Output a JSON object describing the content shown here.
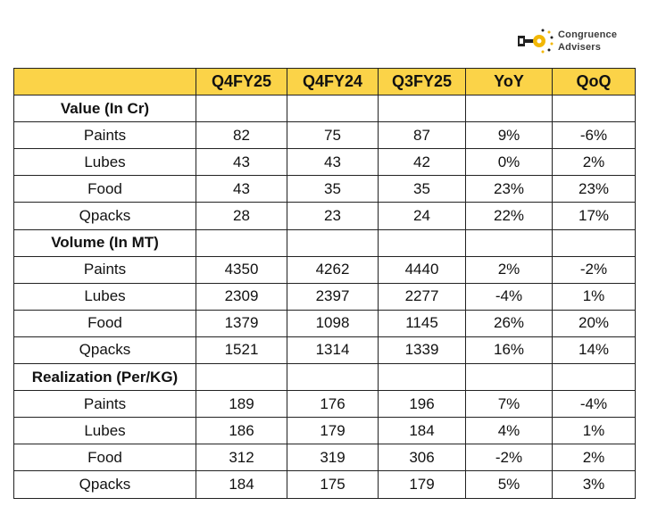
{
  "logo": {
    "line1": "Congruence",
    "line2": "Advisers",
    "icon": "key-icon",
    "accent": "#f2b705"
  },
  "header_color": "#fbd348",
  "columns": [
    "",
    "Q4FY25",
    "Q4FY24",
    "Q3FY25",
    "YoY",
    "QoQ"
  ],
  "sections": [
    {
      "title": "Value (In Cr)",
      "rows": [
        [
          "Paints",
          "82",
          "75",
          "87",
          "9%",
          "-6%"
        ],
        [
          "Lubes",
          "43",
          "43",
          "42",
          "0%",
          "2%"
        ],
        [
          "Food",
          "43",
          "35",
          "35",
          "23%",
          "23%"
        ],
        [
          "Qpacks",
          "28",
          "23",
          "24",
          "22%",
          "17%"
        ]
      ]
    },
    {
      "title": "Volume (In MT)",
      "rows": [
        [
          "Paints",
          "4350",
          "4262",
          "4440",
          "2%",
          "-2%"
        ],
        [
          "Lubes",
          "2309",
          "2397",
          "2277",
          "-4%",
          "1%"
        ],
        [
          "Food",
          "1379",
          "1098",
          "1145",
          "26%",
          "20%"
        ],
        [
          "Qpacks",
          "1521",
          "1314",
          "1339",
          "16%",
          "14%"
        ]
      ]
    },
    {
      "title": "Realization (Per/KG)",
      "rows": [
        [
          "Paints",
          "189",
          "176",
          "196",
          "7%",
          "-4%"
        ],
        [
          "Lubes",
          "186",
          "179",
          "184",
          "4%",
          "1%"
        ],
        [
          "Food",
          "312",
          "319",
          "306",
          "-2%",
          "2%"
        ],
        [
          "Qpacks",
          "184",
          "175",
          "179",
          "5%",
          "3%"
        ]
      ]
    }
  ]
}
